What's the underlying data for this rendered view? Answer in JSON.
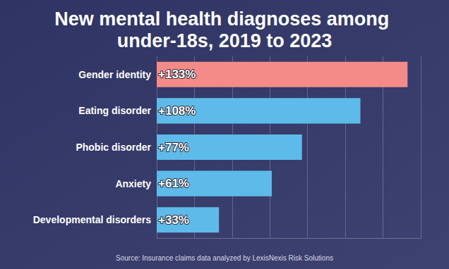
{
  "chart_data": {
    "type": "bar",
    "title": "New mental health diagnoses among under-18s, 2019 to 2023",
    "annotations": [
      "Source: Insurance claims data analyzed by LexisNexis Risk Solutions"
    ],
    "orientation": "horizontal",
    "categories": [
      "Gender identity",
      "Eating disorder",
      "Phobic disorder",
      "Anxiety",
      "Developmental disorders"
    ],
    "values": [
      133,
      108,
      77,
      61,
      33
    ],
    "value_labels": [
      "+133%",
      "+108%",
      "+77%",
      "+61%",
      "+33%"
    ],
    "colors": [
      "#f58b88",
      "#5ebbe9",
      "#5ebbe9",
      "#5ebbe9",
      "#5ebbe9"
    ],
    "xlim": [
      0,
      140
    ],
    "xticks": [
      0,
      20,
      40,
      60,
      80,
      100,
      120,
      140
    ],
    "grid": true,
    "data_labels": true,
    "tick_labels": "y"
  }
}
